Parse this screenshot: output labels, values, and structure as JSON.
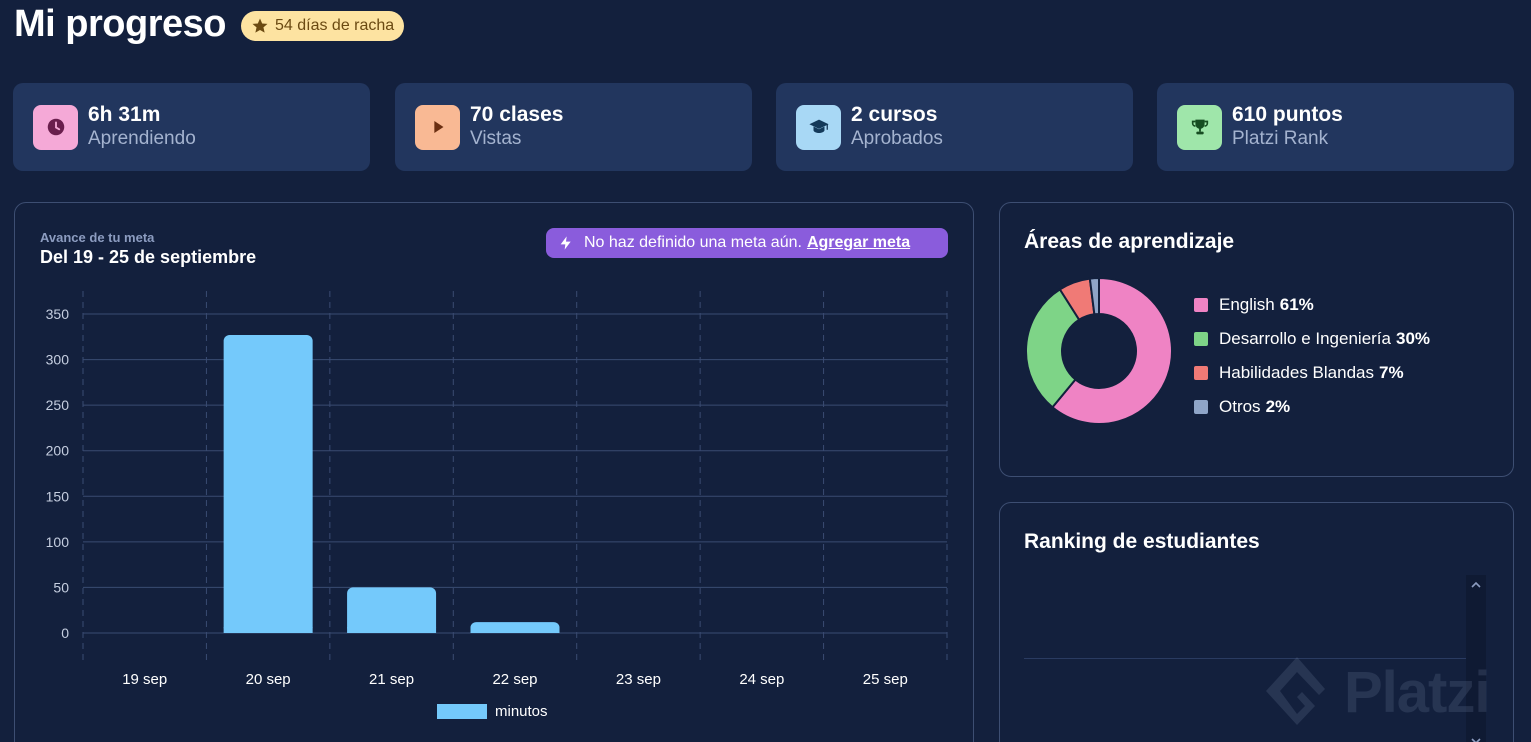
{
  "header": {
    "title": "Mi progreso",
    "streak_label": "54 días de racha"
  },
  "stats": [
    {
      "value": "6h 31m",
      "label": "Aprendiendo",
      "icon": "clock-icon",
      "icon_bg": "#f5a9d7",
      "icon_color": "#6a1e4d"
    },
    {
      "value": "70 clases",
      "label": "Vistas",
      "icon": "play-icon",
      "icon_bg": "#f9b994",
      "icon_color": "#6b2f12"
    },
    {
      "value": "2 cursos",
      "label": "Aprobados",
      "icon": "graduation-cap-icon",
      "icon_bg": "#a8d8f5",
      "icon_color": "#143a5a"
    },
    {
      "value": "610 puntos",
      "label": "Platzi Rank",
      "icon": "trophy-icon",
      "icon_bg": "#9fe6aa",
      "icon_color": "#174d22"
    }
  ],
  "goal": {
    "eyebrow": "Avance de tu meta",
    "range": "Del 19 - 25 de septiembre",
    "alert_text": "No haz definido una meta aún.",
    "alert_link": "Agregar meta",
    "alert_color": "#8a5cdc"
  },
  "chart_data": {
    "type": "bar",
    "categories": [
      "19 sep",
      "20 sep",
      "21 sep",
      "22 sep",
      "23 sep",
      "24 sep",
      "25 sep"
    ],
    "series": [
      {
        "name": "minutos",
        "values": [
          0,
          327,
          50,
          12,
          0,
          0,
          0
        ],
        "color": "#74c9fb"
      }
    ],
    "yticks": [
      0,
      50,
      100,
      150,
      200,
      250,
      300,
      350
    ],
    "ylim": [
      0,
      350
    ],
    "grid": true,
    "legend": "bottom-center",
    "title": "",
    "xlabel": "",
    "ylabel": ""
  },
  "areas": {
    "title": "Áreas de aprendizaje",
    "items": [
      {
        "name": "English",
        "pct": 61,
        "pct_label": "61%",
        "color": "#ef83c4"
      },
      {
        "name": "Desarrollo e Ingeniería",
        "pct": 30,
        "pct_label": "30%",
        "color": "#7ed487"
      },
      {
        "name": "Habilidades Blandas",
        "pct": 7,
        "pct_label": "7%",
        "color": "#f07a76"
      },
      {
        "name": "Otros",
        "pct": 2,
        "pct_label": "2%",
        "color": "#8fa5c8"
      }
    ]
  },
  "ranking": {
    "title": "Ranking de estudiantes"
  },
  "watermark": {
    "text": "Platzi"
  }
}
